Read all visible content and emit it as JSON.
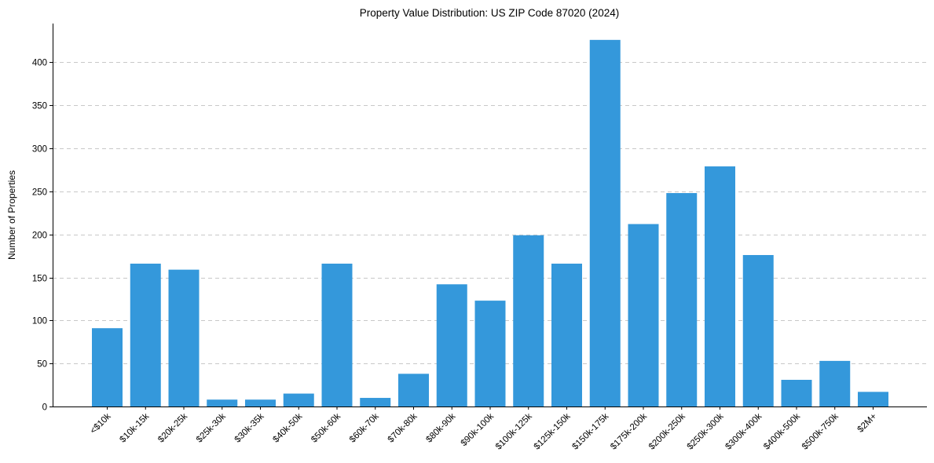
{
  "chart_data": {
    "type": "bar",
    "title": "Property Value Distribution: US ZIP Code 87020 (2024)",
    "xlabel": "",
    "ylabel": "Number of Properties",
    "categories": [
      "<$10k",
      "$10k-15k",
      "$20k-25k",
      "$25k-30k",
      "$30k-35k",
      "$40k-50k",
      "$50k-60k",
      "$60k-70k",
      "$70k-80k",
      "$80k-90k",
      "$90k-100k",
      "$100k-125k",
      "$125k-150k",
      "$150k-175k",
      "$175k-200k",
      "$200k-250k",
      "$250k-300k",
      "$300k-400k",
      "$400k-500k",
      "$500k-750k",
      "$2M+"
    ],
    "values": [
      91,
      166,
      159,
      8,
      8,
      15,
      166,
      10,
      38,
      142,
      123,
      199,
      166,
      426,
      212,
      248,
      279,
      176,
      31,
      53,
      17
    ],
    "ylim": [
      0,
      445
    ],
    "yticks": [
      0,
      50,
      100,
      150,
      200,
      250,
      300,
      350,
      400
    ],
    "grid": "y-dashed",
    "bar_color": "#3498db",
    "x_tick_rotation": 45
  }
}
